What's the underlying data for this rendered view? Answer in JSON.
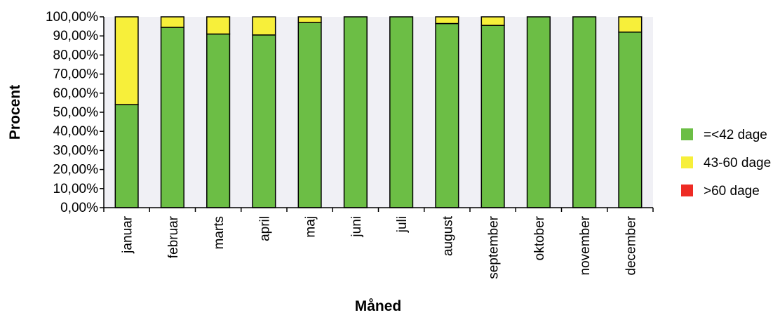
{
  "chart_data": {
    "type": "bar",
    "stacked": true,
    "xlabel": "Måned",
    "ylabel": "Procent",
    "ylim": [
      0,
      100
    ],
    "y_ticks": [
      0,
      10,
      20,
      30,
      40,
      50,
      60,
      70,
      80,
      90,
      100
    ],
    "y_tick_labels": [
      "0,00%",
      "10,00%",
      "20,00%",
      "30,00%",
      "40,00%",
      "50,00%",
      "60,00%",
      "70,00%",
      "80,00%",
      "90,00%",
      "100,00%"
    ],
    "categories": [
      "januar",
      "februar",
      "marts",
      "april",
      "maj",
      "juni",
      "juli",
      "august",
      "september",
      "oktober",
      "november",
      "december"
    ],
    "series": [
      {
        "name": "=<42 dage",
        "color": "#6cbe45",
        "values": [
          54,
          94.5,
          91,
          90.5,
          97,
          100,
          100,
          96.5,
          95.5,
          100,
          100,
          92
        ]
      },
      {
        "name": "43-60 dage",
        "color": "#f7ef3a",
        "values": [
          46,
          5.5,
          9,
          9.5,
          3,
          0,
          0,
          3.5,
          4.5,
          0,
          0,
          8
        ]
      },
      {
        "name": ">60 dage",
        "color": "#ee2b24",
        "values": [
          0,
          0,
          0,
          0,
          0,
          0,
          0,
          0,
          0,
          0,
          0,
          0
        ]
      }
    ],
    "grid": false,
    "plot_background": "#f0f0f5",
    "legend_position": "right"
  }
}
